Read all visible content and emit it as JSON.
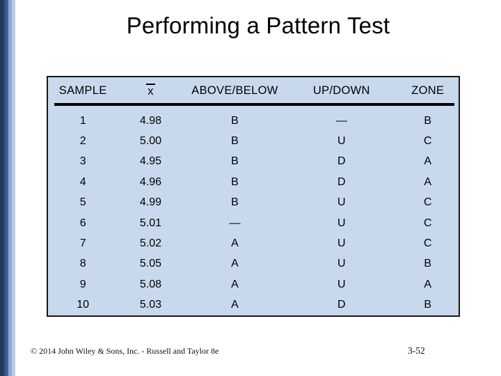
{
  "slide": {
    "title": "Performing a Pattern Test",
    "footer_left": "© 2014 John Wiley & Sons, Inc. - Russell and Taylor 8e",
    "footer_right": "3-52"
  },
  "table": {
    "headers": [
      "SAMPLE",
      "x",
      "ABOVE/BELOW",
      "UP/DOWN",
      "ZONE"
    ],
    "rows": [
      [
        "1",
        "4.98",
        "B",
        "—",
        "B"
      ],
      [
        "2",
        "5.00",
        "B",
        "U",
        "C"
      ],
      [
        "3",
        "4.95",
        "B",
        "D",
        "A"
      ],
      [
        "4",
        "4.96",
        "B",
        "D",
        "A"
      ],
      [
        "5",
        "4.99",
        "B",
        "U",
        "C"
      ],
      [
        "6",
        "5.01",
        "—",
        "U",
        "C"
      ],
      [
        "7",
        "5.02",
        "A",
        "U",
        "C"
      ],
      [
        "8",
        "5.05",
        "A",
        "U",
        "B"
      ],
      [
        "9",
        "5.08",
        "A",
        "U",
        "A"
      ],
      [
        "10",
        "5.03",
        "A",
        "D",
        "B"
      ]
    ]
  },
  "colors": {
    "table_bg": "#C9D9ED",
    "table_border": "#161616",
    "text": "#000000"
  },
  "decor": {
    "stripes": [
      {
        "name": "stripe-darkest-navy",
        "color": "#24395B",
        "width": 5
      },
      {
        "name": "stripe-dark-navy",
        "color": "#2D4B75",
        "width": 3
      },
      {
        "name": "stripe-medium-blue",
        "color": "#3D6394",
        "width": 4
      },
      {
        "name": "stripe-light-blue",
        "color": "#8EA8CC",
        "width": 5
      },
      {
        "name": "stripe-pale-blue",
        "color": "#BACBE2",
        "width": 5
      }
    ]
  }
}
